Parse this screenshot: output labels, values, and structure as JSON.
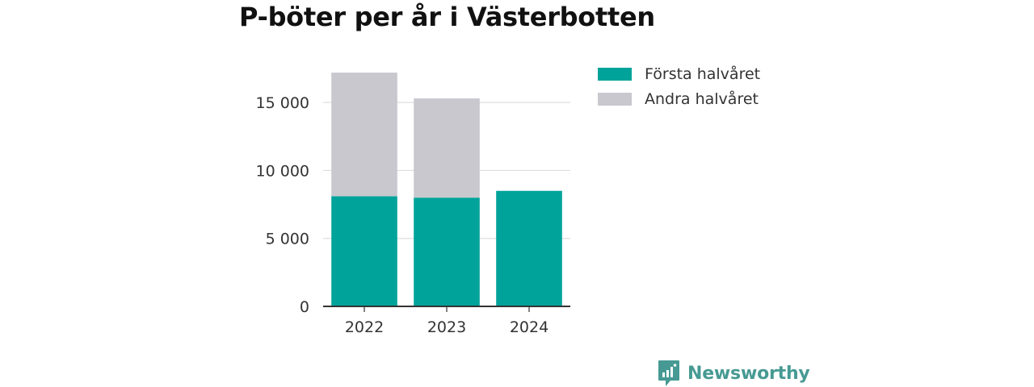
{
  "title": "P-böter per år i Västerbotten",
  "brand": {
    "name": "Newsworthy",
    "logo_icon": "newsworthy-chart-speech-bubble-icon",
    "color": "#469a93"
  },
  "legend": {
    "placement": "right",
    "items": [
      {
        "label": "Första halvåret",
        "color": "#00a39a"
      },
      {
        "label": "Andra halvåret",
        "color": "#c8c8ce"
      }
    ]
  },
  "chart_data": {
    "type": "bar",
    "stacked": true,
    "title": "P-böter per år i Västerbotten",
    "categories": [
      "2022",
      "2023",
      "2024"
    ],
    "series": [
      {
        "name": "Första halvåret",
        "color": "#00a39a",
        "values": [
          8100,
          8000,
          8500
        ]
      },
      {
        "name": "Andra halvåret",
        "color": "#c8c8ce",
        "values": [
          9100,
          7300,
          0
        ]
      }
    ],
    "xlabel": "",
    "ylabel": "",
    "ylim": [
      0,
      17500
    ],
    "yticks": [
      0,
      5000,
      10000,
      15000
    ],
    "ytick_labels": [
      "0",
      "5 000",
      "10 000",
      "15 000"
    ],
    "grid": true
  }
}
